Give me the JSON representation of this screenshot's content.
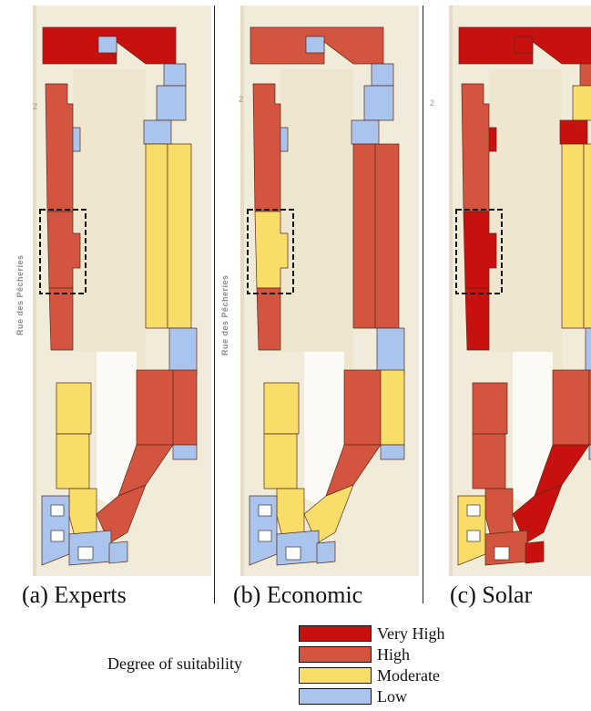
{
  "panels": [
    {
      "caption": "(a) Experts",
      "street_name": "Rue des Pêcheries",
      "house_number_top": "2"
    },
    {
      "caption": "(b) Economic",
      "street_name": "Rue des Pêcheries",
      "house_number_top": "2"
    },
    {
      "caption": "(c) Solar",
      "street_name": "",
      "house_number_top": "2"
    }
  ],
  "legend": {
    "title": "Degree of suitability",
    "items": [
      {
        "label": "Very High",
        "color": "#c8100e"
      },
      {
        "label": "High",
        "color": "#d3553f"
      },
      {
        "label": "Moderate",
        "color": "#f8de69"
      },
      {
        "label": "Low",
        "color": "#a9c5ee"
      }
    ]
  },
  "colors": {
    "very_high": "#c8100e",
    "high": "#d3553f",
    "moderate": "#f8de69",
    "low": "#a9c5ee",
    "background": "#f1ebd9",
    "street": "#ffffff",
    "open_space": "#fbfaf4",
    "highlight_box": "#111111"
  },
  "buildings": [
    {
      "id": "top-block",
      "a": "very_high",
      "b": "high",
      "c": "very_high"
    },
    {
      "id": "top-court",
      "a": "low",
      "b": "low",
      "c": "very_high"
    },
    {
      "id": "right-top-small-1",
      "a": "low",
      "b": "low",
      "c": "high"
    },
    {
      "id": "right-top-small-2",
      "a": "low",
      "b": "low",
      "c": "moderate"
    },
    {
      "id": "right-top-small-3",
      "a": "low",
      "b": "low",
      "c": "very_high"
    },
    {
      "id": "left-small-square",
      "a": "low",
      "b": "low",
      "c": "very_high"
    },
    {
      "id": "left-upper",
      "a": "high",
      "b": "high",
      "c": "high"
    },
    {
      "id": "left-highlight",
      "a": "high",
      "b": "moderate",
      "c": "very_high"
    },
    {
      "id": "left-lower",
      "a": "high",
      "b": "high",
      "c": "very_high"
    },
    {
      "id": "right-long-1",
      "a": "moderate",
      "b": "high",
      "c": "moderate"
    },
    {
      "id": "right-long-2",
      "a": "moderate",
      "b": "high",
      "c": "moderate"
    },
    {
      "id": "right-mid-small",
      "a": "low",
      "b": "low",
      "c": "low"
    },
    {
      "id": "left-bottom-1",
      "a": "moderate",
      "b": "moderate",
      "c": "high"
    },
    {
      "id": "left-bottom-2",
      "a": "moderate",
      "b": "moderate",
      "c": "high"
    },
    {
      "id": "left-bottom-3",
      "a": "moderate",
      "b": "moderate",
      "c": "high"
    },
    {
      "id": "right-lower-1",
      "a": "high",
      "b": "high",
      "c": "high"
    },
    {
      "id": "right-lower-2",
      "a": "high",
      "b": "moderate",
      "c": "high"
    },
    {
      "id": "right-lower-small",
      "a": "low",
      "b": "low",
      "c": "low"
    },
    {
      "id": "curve-1",
      "a": "high",
      "b": "high",
      "c": "very_high"
    },
    {
      "id": "curve-2",
      "a": "high",
      "b": "moderate",
      "c": "very_high"
    },
    {
      "id": "bottom-block-left",
      "a": "low",
      "b": "low",
      "c": "moderate"
    },
    {
      "id": "bottom-block-mid",
      "a": "low",
      "b": "low",
      "c": "high"
    },
    {
      "id": "bottom-small",
      "a": "low",
      "b": "low",
      "c": "very_high"
    }
  ]
}
